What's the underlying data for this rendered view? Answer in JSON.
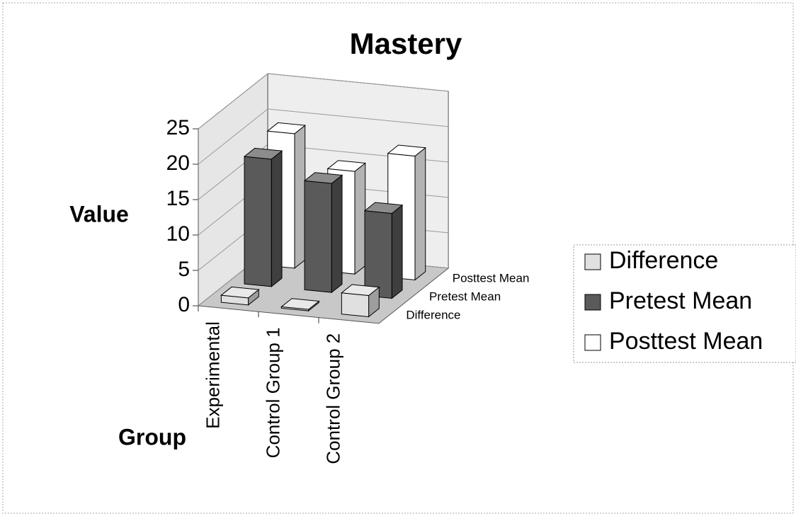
{
  "chart_data": {
    "type": "bar3d",
    "title": "Mastery",
    "y_label": "Value",
    "x_label": "Group",
    "categories": [
      "Experimental",
      "Control Group 1",
      "Control Group 2"
    ],
    "series": [
      {
        "name": "Difference",
        "color": "#e0e0e0",
        "values": [
          1,
          0.2,
          3
        ]
      },
      {
        "name": "Pretest Mean",
        "color": "#5a5a5a",
        "values": [
          18,
          15.4,
          12
        ]
      },
      {
        "name": "Posttest Mean",
        "color": "#ffffff",
        "values": [
          19,
          14.5,
          17.5
        ]
      }
    ],
    "ylim": [
      0,
      25
    ],
    "yticks": [
      0,
      5,
      10,
      15,
      20,
      25
    ],
    "grid": true,
    "legend": "right"
  }
}
